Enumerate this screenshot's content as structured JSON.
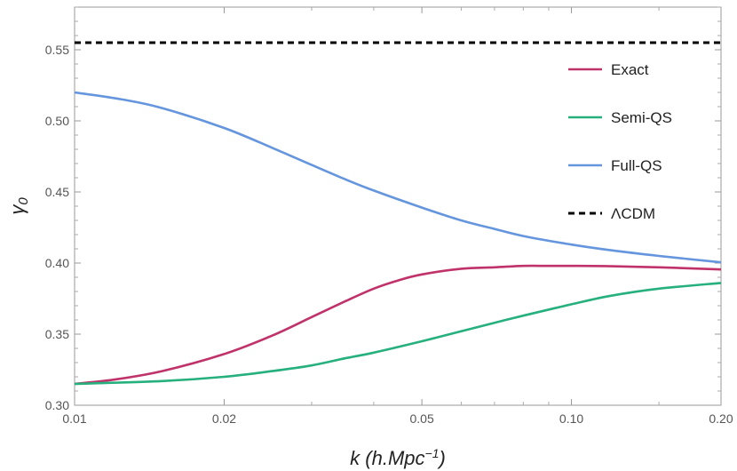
{
  "chart_data": {
    "type": "line",
    "title": "",
    "xlabel": "k (h.Mpc⁻¹)",
    "xlabel_parts": {
      "main": "k (h.Mpc",
      "sup": "−1",
      "close": ")"
    },
    "ylabel": "γ₀",
    "ylabel_parts": {
      "main": "γ",
      "sub": "0"
    },
    "x_scale": "log",
    "xlim": [
      0.01,
      0.2
    ],
    "ylim": [
      0.3,
      0.58
    ],
    "x_ticks": [
      {
        "value": 0.01,
        "label": "0.01"
      },
      {
        "value": 0.02,
        "label": "0.02"
      },
      {
        "value": 0.05,
        "label": "0.05"
      },
      {
        "value": 0.1,
        "label": "0.10"
      },
      {
        "value": 0.2,
        "label": "0.20"
      }
    ],
    "x_minor_ticks": [
      0.03,
      0.04,
      0.06,
      0.07,
      0.08,
      0.09,
      0.15
    ],
    "y_ticks": [
      {
        "value": 0.3,
        "label": "0.30"
      },
      {
        "value": 0.35,
        "label": "0.35"
      },
      {
        "value": 0.4,
        "label": "0.40"
      },
      {
        "value": 0.45,
        "label": "0.45"
      },
      {
        "value": 0.5,
        "label": "0.50"
      },
      {
        "value": 0.55,
        "label": "0.55"
      }
    ],
    "y_minor_step": 0.01,
    "grid": false,
    "legend_position": "top-right",
    "series": [
      {
        "name": "Exact",
        "color": "#c0326a",
        "dash": "solid",
        "x": [
          0.01,
          0.012,
          0.015,
          0.02,
          0.025,
          0.03,
          0.035,
          0.04,
          0.045,
          0.05,
          0.06,
          0.07,
          0.08,
          0.09,
          0.1,
          0.12,
          0.15,
          0.2
        ],
        "y": [
          0.315,
          0.318,
          0.324,
          0.336,
          0.349,
          0.362,
          0.373,
          0.382,
          0.388,
          0.392,
          0.396,
          0.397,
          0.398,
          0.398,
          0.398,
          0.3978,
          0.397,
          0.3955
        ]
      },
      {
        "name": "Semi-QS",
        "color": "#26b07d",
        "dash": "solid",
        "x": [
          0.01,
          0.015,
          0.02,
          0.025,
          0.03,
          0.035,
          0.04,
          0.05,
          0.06,
          0.07,
          0.08,
          0.1,
          0.12,
          0.15,
          0.2
        ],
        "y": [
          0.315,
          0.317,
          0.32,
          0.324,
          0.328,
          0.333,
          0.337,
          0.345,
          0.352,
          0.358,
          0.363,
          0.371,
          0.377,
          0.382,
          0.386
        ]
      },
      {
        "name": "Full-QS",
        "color": "#6495dd",
        "dash": "solid",
        "x": [
          0.01,
          0.0125,
          0.015,
          0.02,
          0.025,
          0.03,
          0.035,
          0.04,
          0.05,
          0.06,
          0.07,
          0.08,
          0.1,
          0.12,
          0.15,
          0.2
        ],
        "y": [
          0.52,
          0.515,
          0.509,
          0.495,
          0.481,
          0.469,
          0.459,
          0.451,
          0.439,
          0.43,
          0.424,
          0.419,
          0.413,
          0.409,
          0.405,
          0.4005
        ]
      },
      {
        "name": "ΛCDM",
        "color": "#000000",
        "dash": "dashed",
        "x": [
          0.01,
          0.2
        ],
        "y": [
          0.555,
          0.555
        ]
      }
    ]
  }
}
